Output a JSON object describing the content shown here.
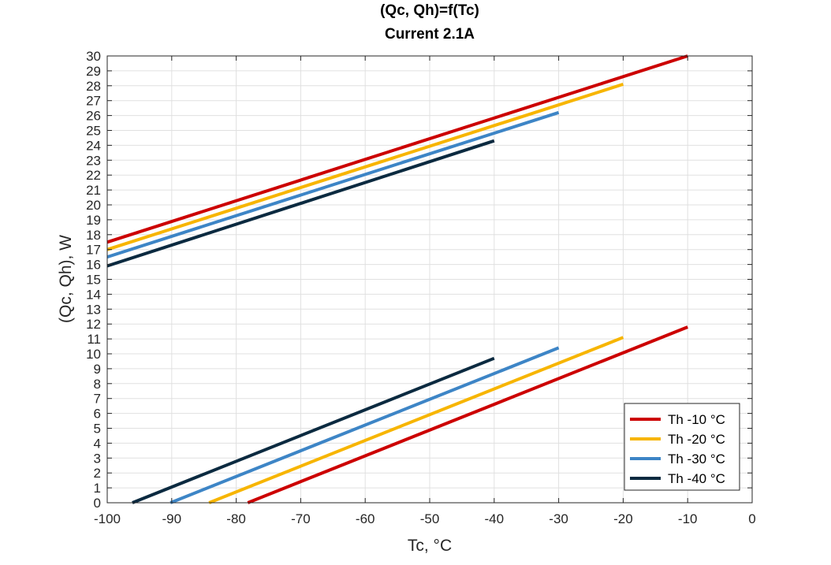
{
  "chart_data": {
    "type": "line",
    "title": "(Qc, Qh)=f(Tc)",
    "subtitle": "Current 2.1A",
    "xlabel": "Tc, °C",
    "ylabel": "(Qc, Qh), W",
    "xlim": [
      -100,
      0
    ],
    "ylim": [
      0,
      30
    ],
    "xticks": [
      -100,
      -90,
      -80,
      -70,
      -60,
      -50,
      -40,
      -30,
      -20,
      -10,
      0
    ],
    "yticks": [
      0,
      1,
      2,
      3,
      4,
      5,
      6,
      7,
      8,
      9,
      10,
      11,
      12,
      13,
      14,
      15,
      16,
      17,
      18,
      19,
      20,
      21,
      22,
      23,
      24,
      25,
      26,
      27,
      28,
      29,
      30
    ],
    "grid": true,
    "legend_position": "bottom-right",
    "series": [
      {
        "name": "Th -10 °C",
        "color": "#cc0000",
        "qc": [
          [
            -78.2,
            0
          ],
          [
            -10,
            11.8
          ]
        ],
        "qh": [
          [
            -100,
            17.5
          ],
          [
            -10,
            30
          ]
        ]
      },
      {
        "name": "Th -20 °C",
        "color": "#f7b500",
        "qc": [
          [
            -84.2,
            0
          ],
          [
            -20,
            11.1
          ]
        ],
        "qh": [
          [
            -100,
            17
          ],
          [
            -20,
            28.1
          ]
        ]
      },
      {
        "name": "Th -30 °C",
        "color": "#3d85c6",
        "qc": [
          [
            -90.2,
            0
          ],
          [
            -30,
            10.4
          ]
        ],
        "qh": [
          [
            -100,
            16.5
          ],
          [
            -30,
            26.2
          ]
        ]
      },
      {
        "name": "Th -40 °C",
        "color": "#0b2a40",
        "qc": [
          [
            -96.1,
            0
          ],
          [
            -40,
            9.7
          ]
        ],
        "qh": [
          [
            -100,
            15.9
          ],
          [
            -40,
            24.3
          ]
        ]
      }
    ]
  }
}
